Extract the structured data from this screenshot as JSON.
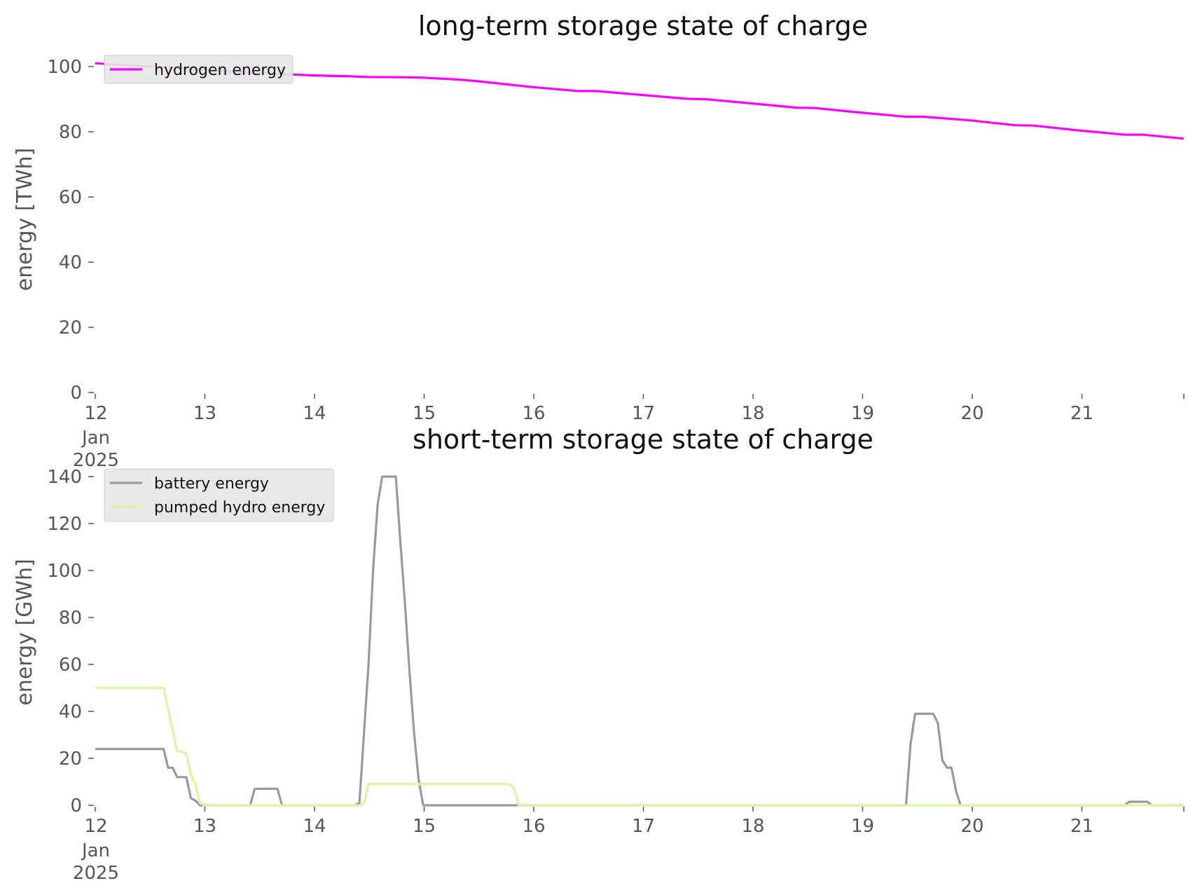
{
  "chart_data": [
    {
      "type": "line",
      "title": "long-term storage state of charge",
      "xlabel": "",
      "ylabel": "energy [TWh]",
      "ylim": [
        0,
        105
      ],
      "xlim": [
        "2025-01-12T00:00",
        "2025-01-21T23:00"
      ],
      "yticks": [
        "0",
        "20",
        "40",
        "60",
        "80",
        "100"
      ],
      "xticks": [
        {
          "label": "12",
          "sub": [
            "Jan",
            "2025"
          ]
        },
        {
          "label": "13"
        },
        {
          "label": "14"
        },
        {
          "label": "15"
        },
        {
          "label": "16"
        },
        {
          "label": "17"
        },
        {
          "label": "18"
        },
        {
          "label": "19"
        },
        {
          "label": "20"
        },
        {
          "label": "21"
        }
      ],
      "grid": false,
      "legend_position": "top-left",
      "series": [
        {
          "name": "hydrogen energy",
          "color": "#ff00ff",
          "points": [
            [
              "2025-01-12T00:00",
              101
            ],
            [
              "2025-01-12T12:00",
              100
            ],
            [
              "2025-01-13T00:00",
              99
            ],
            [
              "2025-01-13T12:00",
              98
            ],
            [
              "2025-01-14T00:00",
              97.3
            ],
            [
              "2025-01-14T08:00",
              97
            ],
            [
              "2025-01-14T12:00",
              96.8
            ],
            [
              "2025-01-14T20:00",
              96.7
            ],
            [
              "2025-01-15T00:00",
              96.6
            ],
            [
              "2025-01-15T08:00",
              96
            ],
            [
              "2025-01-15T12:00",
              95.5
            ],
            [
              "2025-01-16T00:00",
              93.7
            ],
            [
              "2025-01-16T10:00",
              92.5
            ],
            [
              "2025-01-16T14:00",
              92.5
            ],
            [
              "2025-01-17T00:00",
              91.3
            ],
            [
              "2025-01-17T10:00",
              90.1
            ],
            [
              "2025-01-17T14:00",
              90
            ],
            [
              "2025-01-18T00:00",
              88.7
            ],
            [
              "2025-01-18T10:00",
              87.4
            ],
            [
              "2025-01-18T14:00",
              87.3
            ],
            [
              "2025-01-19T00:00",
              85.9
            ],
            [
              "2025-01-19T10:00",
              84.6
            ],
            [
              "2025-01-19T14:00",
              84.6
            ],
            [
              "2025-01-20T00:00",
              83.5
            ],
            [
              "2025-01-20T10:00",
              82
            ],
            [
              "2025-01-20T14:00",
              81.9
            ],
            [
              "2025-01-21T00:00",
              80.4
            ],
            [
              "2025-01-21T10:00",
              79.1
            ],
            [
              "2025-01-21T14:00",
              79.1
            ],
            [
              "2025-01-21T23:00",
              77.9
            ]
          ]
        }
      ]
    },
    {
      "type": "line",
      "title": "short-term storage state of charge",
      "xlabel": "",
      "ylabel": "energy [GWh]",
      "ylim": [
        0,
        140
      ],
      "xlim": [
        "2025-01-12T00:00",
        "2025-01-21T23:00"
      ],
      "yticks": [
        "0",
        "20",
        "40",
        "60",
        "80",
        "100",
        "120",
        "140"
      ],
      "xticks": [
        {
          "label": "12",
          "sub": [
            "Jan",
            "2025"
          ]
        },
        {
          "label": "13"
        },
        {
          "label": "14"
        },
        {
          "label": "15"
        },
        {
          "label": "16"
        },
        {
          "label": "17"
        },
        {
          "label": "18"
        },
        {
          "label": "19"
        },
        {
          "label": "20"
        },
        {
          "label": "21"
        }
      ],
      "grid": false,
      "legend_position": "top-left",
      "series": [
        {
          "name": "battery energy",
          "color": "#999999",
          "points": [
            [
              "2025-01-12T00:00",
              24
            ],
            [
              "2025-01-12T15:00",
              24
            ],
            [
              "2025-01-12T16:00",
              16
            ],
            [
              "2025-01-12T17:00",
              16
            ],
            [
              "2025-01-12T18:00",
              12
            ],
            [
              "2025-01-12T20:00",
              12
            ],
            [
              "2025-01-12T21:00",
              3
            ],
            [
              "2025-01-12T22:00",
              2
            ],
            [
              "2025-01-12T23:00",
              0
            ],
            [
              "2025-01-13T10:00",
              0
            ],
            [
              "2025-01-13T11:00",
              7
            ],
            [
              "2025-01-13T16:00",
              7
            ],
            [
              "2025-01-13T17:00",
              0
            ],
            [
              "2025-01-14T09:00",
              0
            ],
            [
              "2025-01-14T10:00",
              1
            ],
            [
              "2025-01-14T12:00",
              60
            ],
            [
              "2025-01-14T13:00",
              100
            ],
            [
              "2025-01-14T14:00",
              128
            ],
            [
              "2025-01-14T15:00",
              140
            ],
            [
              "2025-01-14T18:00",
              140
            ],
            [
              "2025-01-14T19:00",
              112
            ],
            [
              "2025-01-14T20:00",
              86
            ],
            [
              "2025-01-14T21:00",
              57
            ],
            [
              "2025-01-14T22:00",
              31
            ],
            [
              "2025-01-14T23:00",
              11
            ],
            [
              "2025-01-15T00:00",
              0
            ],
            [
              "2025-01-19T10:00",
              0
            ],
            [
              "2025-01-19T11:00",
              26
            ],
            [
              "2025-01-19T12:00",
              39
            ],
            [
              "2025-01-19T16:00",
              39
            ],
            [
              "2025-01-19T17:00",
              35
            ],
            [
              "2025-01-19T18:00",
              19
            ],
            [
              "2025-01-19T19:00",
              16
            ],
            [
              "2025-01-19T20:00",
              16
            ],
            [
              "2025-01-19T21:00",
              6
            ],
            [
              "2025-01-19T22:00",
              0
            ],
            [
              "2025-01-21T10:00",
              0
            ],
            [
              "2025-01-21T11:00",
              1.5
            ],
            [
              "2025-01-21T15:00",
              1.5
            ],
            [
              "2025-01-21T16:00",
              0
            ],
            [
              "2025-01-21T23:00",
              0
            ]
          ]
        },
        {
          "name": "pumped hydro energy",
          "color": "#d7f7a0",
          "points": [
            [
              "2025-01-12T00:00",
              50
            ],
            [
              "2025-01-12T15:00",
              50
            ],
            [
              "2025-01-12T16:00",
              41
            ],
            [
              "2025-01-12T17:00",
              32
            ],
            [
              "2025-01-12T18:00",
              23
            ],
            [
              "2025-01-12T19:00",
              23
            ],
            [
              "2025-01-12T20:00",
              22
            ],
            [
              "2025-01-12T21:00",
              13
            ],
            [
              "2025-01-12T22:00",
              9
            ],
            [
              "2025-01-12T23:00",
              1
            ],
            [
              "2025-01-13T00:00",
              0
            ],
            [
              "2025-01-14T10:00",
              0
            ],
            [
              "2025-01-14T11:00",
              1
            ],
            [
              "2025-01-14T12:00",
              9
            ],
            [
              "2025-01-15T19:00",
              9
            ],
            [
              "2025-01-15T20:00",
              7
            ],
            [
              "2025-01-15T21:00",
              0
            ],
            [
              "2025-01-21T23:00",
              0
            ]
          ]
        }
      ]
    }
  ]
}
